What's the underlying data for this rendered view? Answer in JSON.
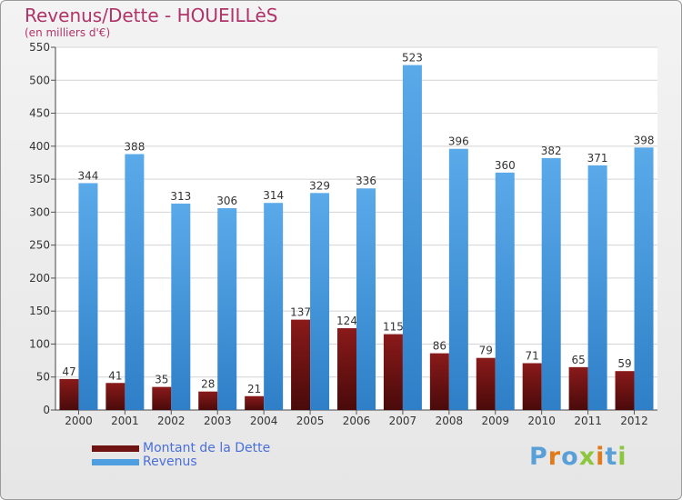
{
  "title": "Revenus/Dette - HOUEILLèS",
  "subtitle": "(en milliers d'€)",
  "logo_text": "Proxiti",
  "colors": {
    "debt": "#6e1212",
    "revenue": "#4f9fe0",
    "title": "#b0336a",
    "legend_text": "#4a6fd8"
  },
  "chart_data": {
    "type": "bar",
    "categories": [
      "2000",
      "2001",
      "2002",
      "2003",
      "2004",
      "2005",
      "2006",
      "2007",
      "2008",
      "2009",
      "2010",
      "2011",
      "2012"
    ],
    "series": [
      {
        "name": "Montant de la Dette",
        "values": [
          47,
          41,
          35,
          28,
          21,
          137,
          124,
          115,
          86,
          79,
          71,
          65,
          59
        ]
      },
      {
        "name": "Revenus",
        "values": [
          344,
          388,
          313,
          306,
          314,
          329,
          336,
          523,
          396,
          360,
          382,
          371,
          398
        ]
      }
    ],
    "ylim": [
      0,
      550
    ],
    "yticks": [
      0,
      50,
      100,
      150,
      200,
      250,
      300,
      350,
      400,
      450,
      500,
      550
    ],
    "grid": true,
    "legend_position": "bottom-left"
  }
}
